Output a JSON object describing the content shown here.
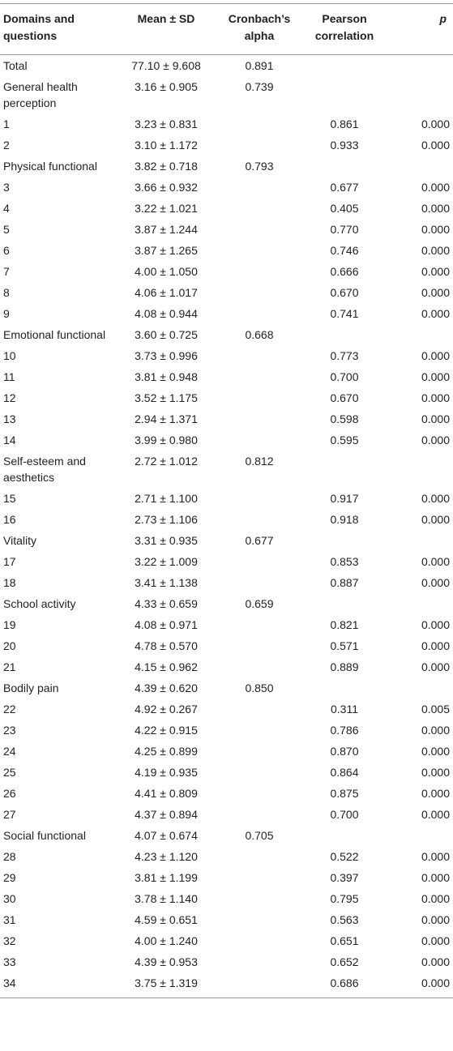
{
  "table": {
    "header": [
      "Domains and questions",
      "Mean ± SD",
      "Cronbach’s alpha",
      "Pearson correlation",
      "p"
    ],
    "rows": [
      {
        "label": "Total",
        "mean": "77.10 ± 9.608",
        "alpha": "0.891"
      },
      {
        "label": "General health perception",
        "mean": "3.16 ± 0.905",
        "alpha": "0.739"
      },
      {
        "label": "1",
        "mean": "3.23 ± 0.831",
        "r": "0.861",
        "p": "0.000"
      },
      {
        "label": "2",
        "mean": "3.10 ± 1.172",
        "r": "0.933",
        "p": "0.000"
      },
      {
        "label": "Physical functional",
        "mean": "3.82 ± 0.718",
        "alpha": "0.793"
      },
      {
        "label": "3",
        "mean": "3.66 ± 0.932",
        "r": "0.677",
        "p": "0.000"
      },
      {
        "label": "4",
        "mean": "3.22 ± 1.021",
        "r": "0.405",
        "p": "0.000"
      },
      {
        "label": "5",
        "mean": "3.87 ± 1.244",
        "r": "0.770",
        "p": "0.000"
      },
      {
        "label": "6",
        "mean": "3.87 ± 1.265",
        "r": "0.746",
        "p": "0.000"
      },
      {
        "label": "7",
        "mean": "4.00 ± 1.050",
        "r": "0.666",
        "p": "0.000"
      },
      {
        "label": "8",
        "mean": "4.06 ± 1.017",
        "r": "0.670",
        "p": "0.000"
      },
      {
        "label": "9",
        "mean": "4.08 ± 0.944",
        "r": "0.741",
        "p": "0.000"
      },
      {
        "label": "Emotional functional",
        "mean": "3.60 ± 0.725",
        "alpha": "0.668"
      },
      {
        "label": "10",
        "mean": "3.73 ± 0.996",
        "r": "0.773",
        "p": "0.000"
      },
      {
        "label": "11",
        "mean": "3.81 ± 0.948",
        "r": "0.700",
        "p": "0.000"
      },
      {
        "label": "12",
        "mean": "3.52 ± 1.175",
        "r": "0.670",
        "p": "0.000"
      },
      {
        "label": "13",
        "mean": "2.94 ± 1.371",
        "r": "0.598",
        "p": "0.000"
      },
      {
        "label": "14",
        "mean": "3.99 ± 0.980",
        "r": "0.595",
        "p": "0.000"
      },
      {
        "label": "Self-esteem and aesthetics",
        "mean": "2.72 ± 1.012",
        "alpha": "0.812"
      },
      {
        "label": "15",
        "mean": "2.71 ± 1.100",
        "r": "0.917",
        "p": "0.000"
      },
      {
        "label": "16",
        "mean": "2.73 ± 1.106",
        "r": "0.918",
        "p": "0.000"
      },
      {
        "label": "Vitality",
        "mean": "3.31 ± 0.935",
        "alpha": "0.677"
      },
      {
        "label": "17",
        "mean": "3.22 ± 1.009",
        "r": "0.853",
        "p": "0.000"
      },
      {
        "label": "18",
        "mean": "3.41 ± 1.138",
        "r": "0.887",
        "p": "0.000"
      },
      {
        "label": "School activity",
        "mean": "4.33 ± 0.659",
        "alpha": "0.659"
      },
      {
        "label": "19",
        "mean": "4.08 ± 0.971",
        "r": "0.821",
        "p": "0.000"
      },
      {
        "label": "20",
        "mean": "4.78 ± 0.570",
        "r": "0.571",
        "p": "0.000"
      },
      {
        "label": "21",
        "mean": "4.15 ± 0.962",
        "r": "0.889",
        "p": "0.000"
      },
      {
        "label": "Bodily pain",
        "mean": "4.39 ± 0.620",
        "alpha": "0.850"
      },
      {
        "label": "22",
        "mean": "4.92 ± 0.267",
        "r": "0.311",
        "p": "0.005"
      },
      {
        "label": "23",
        "mean": "4.22 ± 0.915",
        "r": "0.786",
        "p": "0.000"
      },
      {
        "label": "24",
        "mean": "4.25 ± 0.899",
        "r": "0.870",
        "p": "0.000"
      },
      {
        "label": "25",
        "mean": "4.19 ± 0.935",
        "r": "0.864",
        "p": "0.000"
      },
      {
        "label": "26",
        "mean": "4.41 ± 0.809",
        "r": "0.875",
        "p": "0.000"
      },
      {
        "label": "27",
        "mean": "4.37 ± 0.894",
        "r": "0.700",
        "p": "0.000"
      },
      {
        "label": "Social functional",
        "mean": "4.07 ± 0.674",
        "alpha": "0.705"
      },
      {
        "label": "28",
        "mean": "4.23 ± 1.120",
        "r": "0.522",
        "p": "0.000"
      },
      {
        "label": "29",
        "mean": "3.81 ± 1.199",
        "r": "0.397",
        "p": "0.000"
      },
      {
        "label": "30",
        "mean": "3.78 ± 1.140",
        "r": "0.795",
        "p": "0.000"
      },
      {
        "label": "31",
        "mean": "4.59 ± 0.651",
        "r": "0.563",
        "p": "0.000"
      },
      {
        "label": "32",
        "mean": "4.00 ± 1.240",
        "r": "0.651",
        "p": "0.000"
      },
      {
        "label": "33",
        "mean": "4.39 ± 0.953",
        "r": "0.652",
        "p": "0.000"
      },
      {
        "label": "34",
        "mean": "3.75 ± 1.319",
        "r": "0.686",
        "p": "0.000"
      }
    ]
  }
}
